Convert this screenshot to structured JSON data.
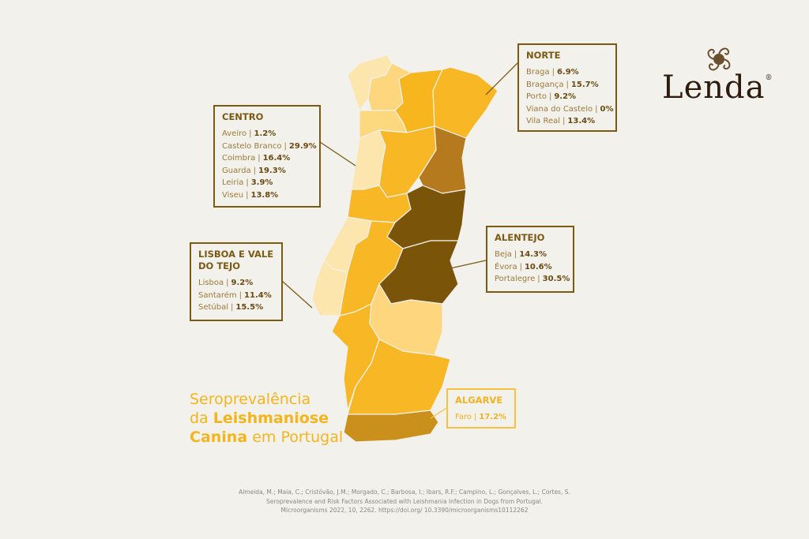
{
  "title": {
    "line1": "Seroprevalência",
    "line2a": "da",
    "line2b": "Leishmaniose",
    "line3a": "Canina",
    "line3b": "em Portugal"
  },
  "separator": "|",
  "logo": {
    "text": "Lenda",
    "mark": "®"
  },
  "regions": [
    {
      "name": "NORTE",
      "districts": [
        {
          "name": "Braga",
          "value": "6.9%"
        },
        {
          "name": "Bragança",
          "value": "15.7%"
        },
        {
          "name": "Porto",
          "value": "9.2%"
        },
        {
          "name": "Viana do Castelo",
          "value": "0%"
        },
        {
          "name": "Vila Real",
          "value": "13.4%"
        }
      ]
    },
    {
      "name": "CENTRO",
      "districts": [
        {
          "name": "Aveiro",
          "value": "1.2%"
        },
        {
          "name": "Castelo Branco",
          "value": "29.9%"
        },
        {
          "name": "Coimbra",
          "value": "16.4%"
        },
        {
          "name": "Guarda",
          "value": "19.3%"
        },
        {
          "name": "Leiria",
          "value": "3.9%"
        },
        {
          "name": "Viseu",
          "value": "13.8%"
        }
      ]
    },
    {
      "name": "LISBOA E VALE DO TEJO",
      "districts": [
        {
          "name": "Lisboa",
          "value": "9.2%"
        },
        {
          "name": "Santarém",
          "value": "11.4%"
        },
        {
          "name": "Setúbal",
          "value": "15.5%"
        }
      ]
    },
    {
      "name": "ALENTEJO",
      "districts": [
        {
          "name": "Beja",
          "value": "14.3%"
        },
        {
          "name": "Évora",
          "value": "10.6%"
        },
        {
          "name": "Portalegre",
          "value": "30.5%"
        }
      ]
    },
    {
      "name": "ALGARVE",
      "districts": [
        {
          "name": "Faro",
          "value": "17.2%"
        }
      ]
    }
  ],
  "citation": [
    "Almeida, M.; Maia, C.; Cristóvão, J.M.; Morgado, C.; Barbosa, I.; Ibars, R.F.; Campino, L.; Gonçalves, L.; Cortes, S.",
    "Seroprevalence and Risk Factors Associated with Leishmania Infection in Dogs from Portugal.",
    "Microorganisms 2022, 10, 2262. https://doi.org/ 10.3390/microorganisms10112262"
  ]
}
